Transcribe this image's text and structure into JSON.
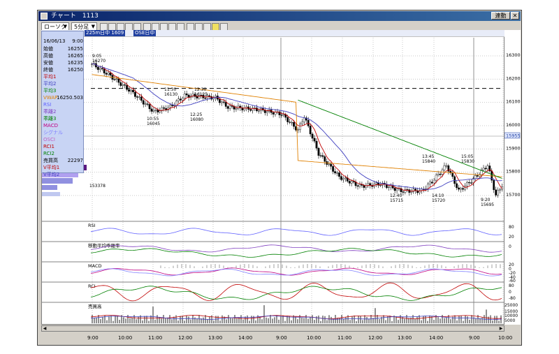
{
  "window": {
    "title": "チャート　1113",
    "title_button_1": "連動"
  },
  "toolbar": {
    "chart_type": "ローソク",
    "interval": "5分足",
    "symbol_code": "1113",
    "header_text_1": "225m日中 1609",
    "header_text_2": "OSE日中"
  },
  "info_panel": {
    "date": "16/06/13",
    "time": "9:00",
    "rows": [
      {
        "label": "始値",
        "value": "16255",
        "color": "#000000"
      },
      {
        "label": "高値",
        "value": "16265",
        "color": "#000000"
      },
      {
        "label": "安値",
        "value": "16235",
        "color": "#000000"
      },
      {
        "label": "終値",
        "value": "16250",
        "color": "#000000"
      },
      {
        "label": "平均1",
        "value": "",
        "color": "#c00000"
      },
      {
        "label": "平均2",
        "value": "",
        "color": "#4040c0"
      },
      {
        "label": "平均3",
        "value": "",
        "color": "#008000"
      },
      {
        "label": "VWAP",
        "value": "16250.503",
        "color": "#e08000"
      },
      {
        "label": "RSI",
        "value": "",
        "color": "#6060ff"
      },
      {
        "label": "乖離2",
        "value": "",
        "color": "#8040c0"
      },
      {
        "label": "乖離3",
        "value": "",
        "color": "#008000"
      },
      {
        "label": "MACD",
        "value": "",
        "color": "#c00080"
      },
      {
        "label": "シグナル",
        "value": "",
        "color": "#8080ff"
      },
      {
        "label": "OSCI",
        "value": "",
        "color": "#c060c0"
      },
      {
        "label": "RCI1",
        "value": "",
        "color": "#c00000"
      },
      {
        "label": "RCI2",
        "value": "",
        "color": "#008000"
      },
      {
        "label": "売買高",
        "value": "22297",
        "color": "#000000"
      },
      {
        "label": "V平均1",
        "value": "",
        "color": "#c00000"
      },
      {
        "label": "V平均2",
        "value": "",
        "color": "#4040c0"
      }
    ]
  },
  "price_axis": [
    "16300",
    "16200",
    "16100",
    "16000",
    "15900",
    "15800",
    "15700"
  ],
  "price_current": "15955",
  "volume_profile_label": "153378",
  "annotations": [
    {
      "time": "9:05",
      "price": "16270"
    },
    {
      "time": "11:30",
      "price": "16130"
    },
    {
      "time": "12:30",
      "price": "16125"
    },
    {
      "time": "10:55",
      "price": "16045"
    },
    {
      "time": "12:25",
      "price": "16080"
    },
    {
      "time": "13:45",
      "price": "15840"
    },
    {
      "time": "15:05",
      "price": "15830"
    },
    {
      "time": "12:40",
      "price": "15715"
    },
    {
      "time": "14:10",
      "price": "15720"
    },
    {
      "time": "9:20",
      "price": "15695"
    }
  ],
  "sub_panels": [
    {
      "name": "RSI",
      "ticks": [
        "80",
        "20"
      ]
    },
    {
      "name": "移動平均乖離率",
      "ticks": [
        "0"
      ]
    },
    {
      "name": "MACD",
      "ticks": [
        "20",
        "0",
        "-20",
        "-40",
        "-60"
      ]
    },
    {
      "name": "RCI",
      "ticks": [
        "80",
        "0",
        "-80"
      ]
    },
    {
      "name": "売買高",
      "ticks": [
        "25000",
        "15000",
        "10000",
        "5000"
      ]
    }
  ],
  "time_axis": [
    "9:00",
    "10:00",
    "11:00",
    "12:00",
    "13:00",
    "14:00",
    "9:00",
    "10:00",
    "11:00",
    "12:00",
    "13:00",
    "14:00",
    "9:00",
    "10:00"
  ],
  "colors": {
    "title_bar": "#0a246a",
    "candle_up": "#ffffff",
    "candle_down": "#000000",
    "ma1": "#c00000",
    "ma2": "#4040c0",
    "ma3": "#008000",
    "vwap": "#e08000"
  }
}
